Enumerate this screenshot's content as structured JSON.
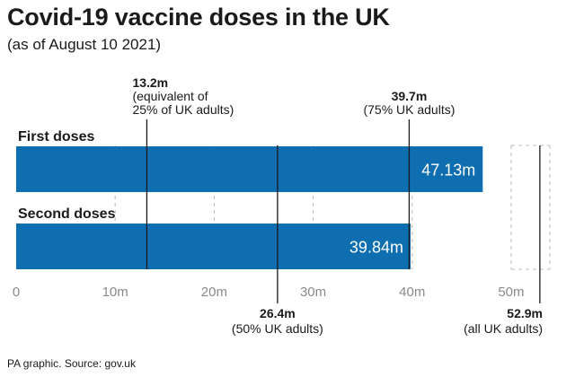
{
  "header": {
    "title": "Covid-19 vaccine doses in the UK",
    "subtitle": "(as of August 10 2021)"
  },
  "footer": {
    "source": "PA graphic. Source: gov.uk"
  },
  "colors": {
    "bar": "#0e6eb0",
    "bar_label": "#ffffff",
    "text": "#1a1a1a",
    "tick": "#8a8a8a",
    "grid": "#bbbbbb",
    "ref_line": "#1a1a1a"
  },
  "chart_data": {
    "type": "bar",
    "orientation": "horizontal",
    "categories": [
      "First doses",
      "Second doses"
    ],
    "values": [
      47.13,
      39.84
    ],
    "value_labels": [
      "47.13m",
      "39.84m"
    ],
    "xlim": [
      0,
      54
    ],
    "xticks": [
      0,
      10,
      20,
      30,
      40,
      50
    ],
    "xtick_labels": [
      "0",
      "10m",
      "20m",
      "30m",
      "40m",
      "50m"
    ],
    "grid": true,
    "reference_lines": [
      {
        "value": 13.2,
        "label_lines": [
          "13.2m",
          "(equivalent of",
          "25% of UK adults)"
        ],
        "position": "top"
      },
      {
        "value": 39.7,
        "label_lines": [
          "39.7m",
          "(75% UK adults)"
        ],
        "position": "top"
      },
      {
        "value": 26.4,
        "label_lines": [
          "26.4m",
          "(50% UK adults)"
        ],
        "position": "bottom"
      },
      {
        "value": 52.9,
        "label_lines": [
          "52.9m",
          "(all UK adults)"
        ],
        "position": "bottom"
      }
    ]
  }
}
